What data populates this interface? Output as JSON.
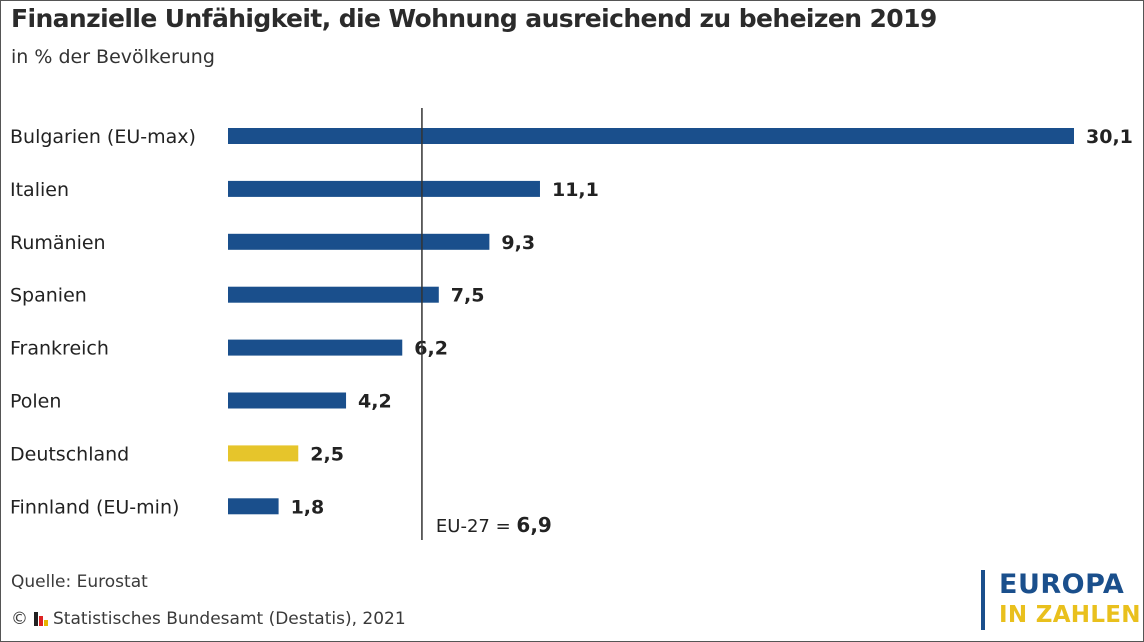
{
  "title": "Finanzielle Unfähigkeit, die Wohnung ausreichend zu beheizen 2019",
  "subtitle": "in % der Bevölkerung",
  "source": "Quelle: Eurostat",
  "copyright_symbol": "©",
  "copyright_text": "Statistisches Bundesamt (Destatis), 2021",
  "brand": {
    "line1": "EUROPA",
    "line2": "IN ZAHLEN"
  },
  "colors": {
    "bar": "#1a4f8c",
    "highlight": "#e6c52b",
    "reference_line": "#333333"
  },
  "chart_data": {
    "type": "bar",
    "orientation": "horizontal",
    "title": "Finanzielle Unfähigkeit, die Wohnung ausreichend zu beheizen 2019",
    "subtitle": "in % der Bevölkerung",
    "categories": [
      "Bulgarien (EU-max)",
      "Italien",
      "Rumänien",
      "Spanien",
      "Frankreich",
      "Polen",
      "Deutschland",
      "Finnland (EU-min)"
    ],
    "values": [
      30.1,
      11.1,
      9.3,
      7.5,
      6.2,
      4.2,
      2.5,
      1.8
    ],
    "value_labels": [
      "30,1",
      "11,1",
      "9,3",
      "7,5",
      "6,2",
      "4,2",
      "2,5",
      "1,8"
    ],
    "highlight_category": "Deutschland",
    "reference_line": {
      "value": 6.9,
      "label_prefix": "EU-27 = ",
      "label_value": "6,9"
    },
    "xlim": [
      0,
      30.1
    ],
    "grid": false,
    "legend": "none"
  }
}
